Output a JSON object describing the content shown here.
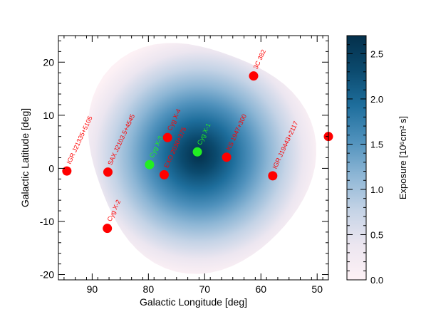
{
  "chart_data": {
    "type": "heatmap",
    "title": "",
    "xlabel": "Galactic Longitude [deg]",
    "ylabel": "Galactic Latitude [deg]",
    "xlim": [
      96,
      48
    ],
    "ylim": [
      -21,
      25
    ],
    "x_ticks": [
      {
        "value": 90,
        "label": "90"
      },
      {
        "value": 80,
        "label": "80"
      },
      {
        "value": 70,
        "label": "70"
      },
      {
        "value": 60,
        "label": "60"
      },
      {
        "value": 50,
        "label": "50"
      }
    ],
    "y_ticks": [
      {
        "value": 20,
        "label": "20"
      },
      {
        "value": 10,
        "label": "10"
      },
      {
        "value": 0,
        "label": "0"
      },
      {
        "value": -10,
        "label": "-10"
      },
      {
        "value": -20,
        "label": "-20"
      }
    ],
    "exposure_map": {
      "center": [
        71,
        2.5
      ],
      "peak": 2.7,
      "outer_contour_level": 0.05
    },
    "colorbar": {
      "label": "Exposure [10⁶cm² s]",
      "min": 0.0,
      "max": 2.7,
      "ticks": [
        {
          "value": 0.0,
          "label": "0.0"
        },
        {
          "value": 0.5,
          "label": "0.5"
        },
        {
          "value": 1.0,
          "label": "1.0"
        },
        {
          "value": 1.5,
          "label": "1.5"
        },
        {
          "value": 2.0,
          "label": "2.0"
        },
        {
          "value": 2.5,
          "label": "2.5"
        }
      ],
      "colors": [
        "#fdf1f5",
        "#ece6f0",
        "#c4d3e6",
        "#8db6d5",
        "#4f91bc",
        "#1e6e9c",
        "#0b4a6e",
        "#04304b"
      ]
    },
    "sources": [
      {
        "name": "IGR J21335+5105",
        "l": 94.5,
        "b": -0.5,
        "color": "#ff0000"
      },
      {
        "name": "SAX J2103.5+4545",
        "l": 87.2,
        "b": -0.7,
        "color": "#ff0000"
      },
      {
        "name": "Cyg X-2",
        "l": 87.3,
        "b": -11.3,
        "color": "#ff0000"
      },
      {
        "name": "Cyg X-3",
        "l": 79.8,
        "b": 0.7,
        "color": "#22ee22"
      },
      {
        "name": "EXO 2030+375",
        "l": 77.2,
        "b": -1.2,
        "color": "#ff0000"
      },
      {
        "name": "Cyg X-4",
        "l": 76.6,
        "b": 5.8,
        "color": "#ff0000"
      },
      {
        "name": "Cyg X-1",
        "l": 71.3,
        "b": 3.1,
        "color": "#22ee22"
      },
      {
        "name": "KS 1947+300",
        "l": 66.1,
        "b": 2.1,
        "color": "#ff0000"
      },
      {
        "name": "3C 382",
        "l": 61.3,
        "b": 17.4,
        "color": "#ff0000"
      },
      {
        "name": "IGR J19443+2117",
        "l": 57.9,
        "b": -1.4,
        "color": "#ff0000"
      },
      {
        "name": "",
        "l": 48.0,
        "b": 6.0,
        "color": "#ff0000"
      }
    ]
  }
}
